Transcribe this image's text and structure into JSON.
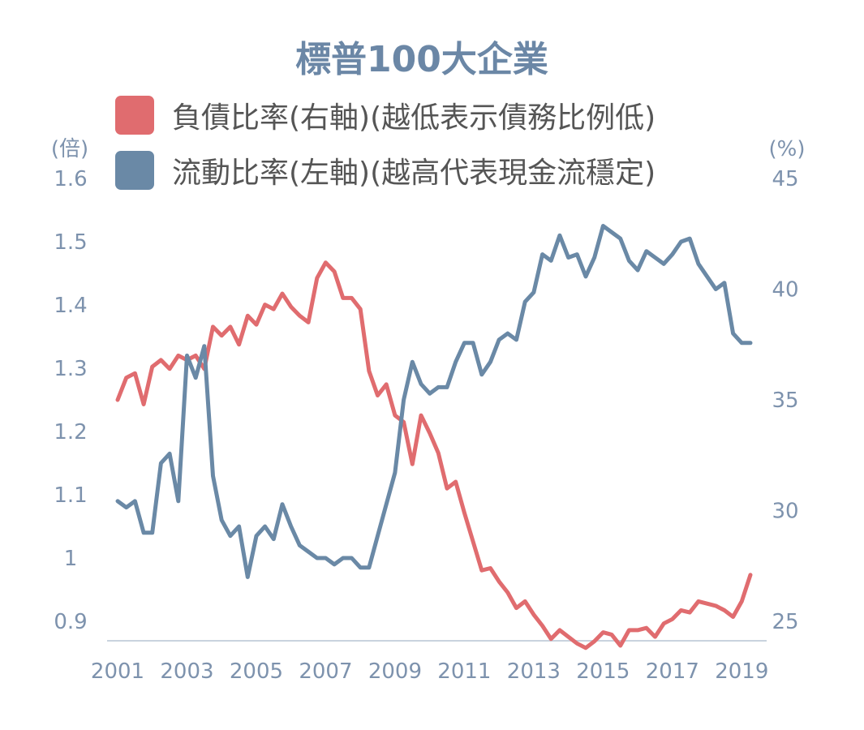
{
  "chart_data": {
    "type": "line",
    "title": "標普100大企業",
    "left_axis": {
      "unit": "(倍)",
      "ticks": [
        "1.6",
        "1.5",
        "1.4",
        "1.3",
        "1.2",
        "1.1",
        "1",
        "0.9"
      ],
      "ylim": [
        0.9,
        1.6
      ]
    },
    "right_axis": {
      "unit": "(%)",
      "ticks": [
        "45",
        "40",
        "35",
        "30",
        "25"
      ],
      "ylim": [
        25,
        45
      ]
    },
    "x_ticks": [
      "2001",
      "2003",
      "2005",
      "2007",
      "2009",
      "2011",
      "2013",
      "2015",
      "2017",
      "2019"
    ],
    "xlim": [
      2001,
      2019.25
    ],
    "series": [
      {
        "name": "負債比率(右軸)(越低表示債務比例低)",
        "axis": "right",
        "color": "#e06c6f",
        "x": [
          2001.0,
          2001.25,
          2001.5,
          2001.75,
          2002.0,
          2002.25,
          2002.5,
          2002.75,
          2003.0,
          2003.25,
          2003.5,
          2003.75,
          2004.0,
          2004.25,
          2004.5,
          2004.75,
          2005.0,
          2005.25,
          2005.5,
          2005.75,
          2006.0,
          2006.25,
          2006.5,
          2006.75,
          2007.0,
          2007.25,
          2007.5,
          2007.75,
          2008.0,
          2008.25,
          2008.5,
          2008.75,
          2009.0,
          2009.25,
          2009.5,
          2009.75,
          2010.0,
          2010.25,
          2010.5,
          2010.75,
          2011.0,
          2011.25,
          2011.5,
          2011.75,
          2012.0,
          2012.25,
          2012.5,
          2012.75,
          2013.0,
          2013.25,
          2013.5,
          2013.75,
          2014.0,
          2014.25,
          2014.5,
          2014.75,
          2015.0,
          2015.25,
          2015.5,
          2015.75,
          2016.0,
          2016.25,
          2016.5,
          2016.75,
          2017.0,
          2017.25,
          2017.5,
          2017.75,
          2018.0,
          2018.25,
          2018.5,
          2018.75,
          2019.0,
          2019.25
        ],
        "values": [
          35.0,
          36.0,
          36.2,
          34.8,
          36.5,
          36.8,
          36.4,
          37.0,
          36.8,
          37.0,
          36.4,
          38.3,
          37.9,
          38.3,
          37.5,
          38.8,
          38.4,
          39.3,
          39.1,
          39.8,
          39.2,
          38.8,
          38.5,
          40.5,
          41.2,
          40.8,
          39.6,
          39.6,
          39.1,
          36.3,
          35.2,
          35.7,
          34.3,
          34.0,
          32.1,
          34.3,
          33.5,
          32.6,
          31.0,
          31.3,
          29.9,
          28.6,
          27.3,
          27.4,
          26.8,
          26.3,
          25.6,
          25.9,
          25.3,
          24.8,
          24.2,
          24.6,
          24.3,
          24.0,
          23.8,
          24.1,
          24.5,
          24.4,
          23.9,
          24.6,
          24.6,
          24.7,
          24.3,
          24.9,
          25.1,
          25.5,
          25.4,
          25.9,
          25.8,
          25.7,
          25.5,
          25.2,
          25.9,
          27.1
        ]
      },
      {
        "name": "流動比率(左軸)(越高代表現金流穩定)",
        "axis": "left",
        "color": "#6a89a6",
        "x": [
          2001.0,
          2001.25,
          2001.5,
          2001.75,
          2002.0,
          2002.25,
          2002.5,
          2002.75,
          2003.0,
          2003.25,
          2003.5,
          2003.75,
          2004.0,
          2004.25,
          2004.5,
          2004.75,
          2005.0,
          2005.25,
          2005.5,
          2005.75,
          2006.0,
          2006.25,
          2006.5,
          2006.75,
          2007.0,
          2007.25,
          2007.5,
          2007.75,
          2008.0,
          2008.25,
          2008.5,
          2008.75,
          2009.0,
          2009.25,
          2009.5,
          2009.75,
          2010.0,
          2010.25,
          2010.5,
          2010.75,
          2011.0,
          2011.25,
          2011.5,
          2011.75,
          2012.0,
          2012.25,
          2012.5,
          2012.75,
          2013.0,
          2013.25,
          2013.5,
          2013.75,
          2014.0,
          2014.25,
          2014.5,
          2014.75,
          2015.0,
          2015.25,
          2015.5,
          2015.75,
          2016.0,
          2016.25,
          2016.5,
          2016.75,
          2017.0,
          2017.25,
          2017.5,
          2017.75,
          2018.0,
          2018.25,
          2018.5,
          2018.75,
          2019.0,
          2019.25
        ],
        "values": [
          1.09,
          1.08,
          1.09,
          1.04,
          1.04,
          1.15,
          1.165,
          1.09,
          1.32,
          1.285,
          1.335,
          1.13,
          1.06,
          1.035,
          1.05,
          0.97,
          1.035,
          1.05,
          1.03,
          1.085,
          1.05,
          1.02,
          1.01,
          1.0,
          1.0,
          0.99,
          1.0,
          1.0,
          0.985,
          0.985,
          1.035,
          1.085,
          1.135,
          1.25,
          1.31,
          1.275,
          1.26,
          1.27,
          1.27,
          1.31,
          1.34,
          1.34,
          1.29,
          1.31,
          1.345,
          1.355,
          1.345,
          1.405,
          1.42,
          1.48,
          1.47,
          1.51,
          1.475,
          1.48,
          1.445,
          1.475,
          1.525,
          1.515,
          1.505,
          1.47,
          1.455,
          1.485,
          1.475,
          1.465,
          1.48,
          1.5,
          1.505,
          1.465,
          1.445,
          1.425,
          1.435,
          1.355,
          1.34,
          1.34
        ]
      }
    ],
    "legend_position": "top",
    "grid": false
  }
}
